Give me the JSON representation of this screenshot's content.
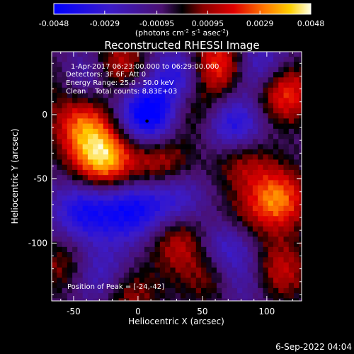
{
  "chart_data": {
    "type": "heatmap",
    "title": "Reconstructed RHESSI Image",
    "xlabel": "Heliocentric X (arcsec)",
    "ylabel": "Heliocentric Y (arcsec)",
    "xlim": [
      -67,
      127
    ],
    "ylim": [
      -145,
      49
    ],
    "x_ticks": [
      "-50",
      "0",
      "50",
      "100"
    ],
    "x_tick_values": [
      -50,
      0,
      50,
      100
    ],
    "y_ticks": [
      "0",
      "-50",
      "-100"
    ],
    "y_tick_values": [
      0,
      -50,
      -100
    ],
    "colorbar": {
      "min": -0.0048,
      "max": 0.0048,
      "ticks": [
        "-0.0048",
        "-0.0029",
        "-0.00095",
        "0.00095",
        "0.0029",
        "0.0048"
      ],
      "tick_values": [
        -0.0048,
        -0.0029,
        -0.00095,
        0.00095,
        0.0029,
        0.0048
      ],
      "units_prefix": "(photons cm",
      "units_sup1": "-2",
      "units_mid1": " s",
      "units_sup2": "-1",
      "units_mid2": " asec",
      "units_sup3": "-2",
      "units_suffix": ")"
    },
    "annotations": [
      "1-Apr-2017 06:23:00.000 to 06:29:00.000",
      "Detectors: 3F 6F, Att 0",
      "Energy Range: 25.0 - 50.0 keV",
      "Clean    Total counts: 8.83E+03"
    ],
    "peak_label": "Position of Peak = [-24,-42]",
    "peak": [
      -24,
      -42
    ],
    "marker": [
      7,
      -5
    ],
    "sources": [
      {
        "x": -27,
        "y": -35,
        "w": 0.0048
      },
      {
        "x": -42,
        "y": -8,
        "w": 0.0035
      },
      {
        "x": 60,
        "y": 38,
        "w": 0.0043
      },
      {
        "x": 112,
        "y": 18,
        "w": 0.004
      },
      {
        "x": 108,
        "y": -66,
        "w": 0.004
      },
      {
        "x": 18,
        "y": -38,
        "w": 0.0027
      },
      {
        "x": -16,
        "y": 37,
        "w": 0.003
      },
      {
        "x": 32,
        "y": -98,
        "w": 0.0026
      },
      {
        "x": 108,
        "y": -122,
        "w": 0.0028
      },
      {
        "x": -8,
        "y": -140,
        "w": 0.0022
      },
      {
        "x": -56,
        "y": -118,
        "w": 0.002
      },
      {
        "x": 58,
        "y": -125,
        "w": 0.0022
      },
      {
        "x": 80,
        "y": -32,
        "w": 0.0025
      },
      {
        "x": 42,
        "y": 5,
        "w": 0.0023
      },
      {
        "x": -60,
        "y": 28,
        "w": 0.0015
      },
      {
        "x": 75,
        "y": -88,
        "w": 0.002
      }
    ],
    "wells": [
      {
        "x": 8,
        "y": 0,
        "w": -0.0048
      },
      {
        "x": 35,
        "y": 30,
        "w": -0.0035
      },
      {
        "x": -5,
        "y": -75,
        "w": -0.0033
      },
      {
        "x": 75,
        "y": -10,
        "w": -0.0037
      },
      {
        "x": 68,
        "y": -100,
        "w": -0.0035
      },
      {
        "x": -42,
        "y": -75,
        "w": -0.0032
      },
      {
        "x": 95,
        "y": 35,
        "w": -0.003
      },
      {
        "x": -40,
        "y": 30,
        "w": -0.0028
      },
      {
        "x": 28,
        "y": -65,
        "w": -0.0025
      },
      {
        "x": -30,
        "y": -125,
        "w": -0.0025
      },
      {
        "x": 82,
        "y": -128,
        "w": -0.002
      }
    ]
  },
  "footer_timestamp": "6-Sep-2022 04:04"
}
